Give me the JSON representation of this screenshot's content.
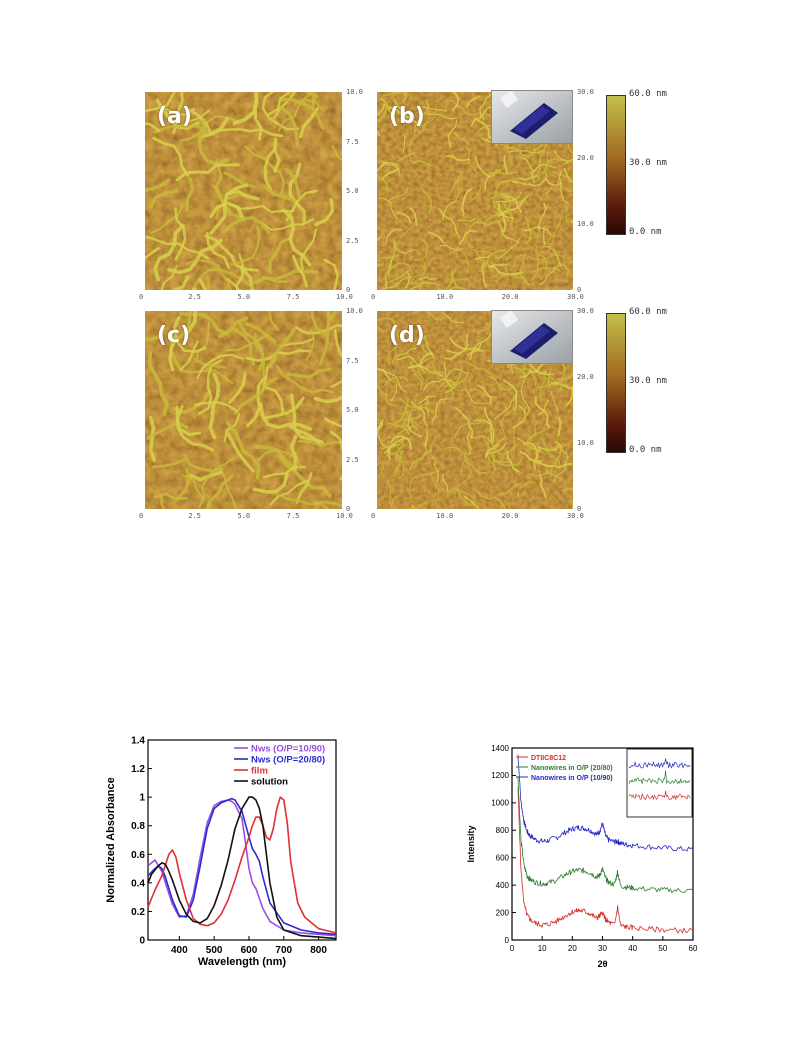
{
  "afm": {
    "panels": [
      {
        "label": "(a)",
        "x_ticks": [
          "0",
          "2.5",
          "5.0",
          "7.5",
          "10.0"
        ],
        "y_ticks": [
          "10.0",
          "7.5",
          "5.0",
          "2.5",
          "0"
        ],
        "seed": 3
      },
      {
        "label": "(b)",
        "x_ticks": [
          "0",
          "10.0",
          "20.0",
          "30.0"
        ],
        "y_ticks": [
          "30.0",
          "20.0",
          "10.0",
          "0"
        ],
        "seed": 11
      },
      {
        "label": "(c)",
        "x_ticks": [
          "0",
          "2.5",
          "5.0",
          "7.5",
          "10.0"
        ],
        "y_ticks": [
          "10.0",
          "7.5",
          "5.0",
          "2.5",
          "0"
        ],
        "seed": 7
      },
      {
        "label": "(d)",
        "x_ticks": [
          "0",
          "10.0",
          "20.0",
          "30.0"
        ],
        "y_ticks": [
          "30.0",
          "20.0",
          "10.0",
          "0"
        ],
        "seed": 19
      }
    ],
    "colorbars": [
      {
        "top": "60.0 nm",
        "mid": "30.0 nm",
        "bottom": "0.0 nm"
      },
      {
        "top": "60.0 nm",
        "mid": "30.0 nm",
        "bottom": "0.0 nm"
      }
    ]
  },
  "chart_data": [
    {
      "type": "line",
      "xlabel": "Wavelength (nm)",
      "ylabel": "Normalized Absorbance",
      "xlim": [
        310,
        850
      ],
      "ylim": [
        0,
        1.4
      ],
      "x_ticks": [
        400,
        500,
        600,
        700,
        800
      ],
      "y_ticks": [
        0,
        0.2,
        0.4,
        0.6,
        0.8,
        1,
        1.2,
        1.4
      ],
      "legend_position": "top-right",
      "series": [
        {
          "name": "Nws (O/P=10/90)",
          "color": "#9b4fe0",
          "x": [
            310,
            330,
            340,
            350,
            360,
            380,
            400,
            420,
            440,
            460,
            480,
            500,
            520,
            540,
            550,
            560,
            580,
            590,
            600,
            610,
            620,
            640,
            660,
            700,
            750,
            800,
            850
          ],
          "y": [
            0.52,
            0.56,
            0.52,
            0.48,
            0.4,
            0.25,
            0.16,
            0.17,
            0.32,
            0.58,
            0.82,
            0.94,
            0.97,
            0.98,
            0.97,
            0.95,
            0.85,
            0.68,
            0.5,
            0.4,
            0.36,
            0.22,
            0.13,
            0.07,
            0.05,
            0.04,
            0.03
          ]
        },
        {
          "name": "Nws (O/P=20/80)",
          "color": "#2b2bd4",
          "x": [
            310,
            330,
            340,
            350,
            360,
            380,
            400,
            420,
            440,
            460,
            480,
            500,
            520,
            540,
            550,
            560,
            580,
            600,
            610,
            620,
            630,
            640,
            660,
            700,
            750,
            800,
            850
          ],
          "y": [
            0.45,
            0.5,
            0.52,
            0.5,
            0.44,
            0.28,
            0.17,
            0.16,
            0.28,
            0.52,
            0.78,
            0.92,
            0.96,
            0.98,
            0.99,
            0.98,
            0.9,
            0.72,
            0.64,
            0.6,
            0.55,
            0.44,
            0.26,
            0.12,
            0.07,
            0.05,
            0.04
          ]
        },
        {
          "name": "film",
          "color": "#e03030",
          "x": [
            310,
            330,
            350,
            370,
            380,
            390,
            400,
            420,
            440,
            460,
            480,
            500,
            520,
            540,
            560,
            580,
            600,
            610,
            620,
            630,
            640,
            650,
            660,
            670,
            680,
            690,
            700,
            710,
            720,
            740,
            760,
            800,
            850
          ],
          "y": [
            0.23,
            0.35,
            0.45,
            0.6,
            0.63,
            0.58,
            0.47,
            0.28,
            0.15,
            0.11,
            0.1,
            0.12,
            0.18,
            0.28,
            0.42,
            0.58,
            0.72,
            0.8,
            0.86,
            0.86,
            0.8,
            0.72,
            0.7,
            0.78,
            0.92,
            1.0,
            0.98,
            0.82,
            0.55,
            0.26,
            0.16,
            0.08,
            0.05
          ]
        },
        {
          "name": "solution",
          "color": "#111111",
          "x": [
            310,
            320,
            340,
            350,
            360,
            370,
            380,
            400,
            420,
            440,
            460,
            480,
            500,
            520,
            540,
            560,
            580,
            600,
            610,
            620,
            630,
            640,
            650,
            660,
            680,
            700,
            750,
            800,
            850
          ],
          "y": [
            0.4,
            0.46,
            0.52,
            0.54,
            0.53,
            0.48,
            0.42,
            0.28,
            0.18,
            0.13,
            0.12,
            0.15,
            0.24,
            0.38,
            0.56,
            0.78,
            0.92,
            1.0,
            1.0,
            0.98,
            0.92,
            0.8,
            0.6,
            0.4,
            0.16,
            0.07,
            0.03,
            0.02,
            0.01
          ]
        }
      ]
    },
    {
      "type": "line",
      "xlabel": "2θ",
      "ylabel": "Intensity",
      "xlim": [
        0,
        60
      ],
      "ylim": [
        0,
        1400
      ],
      "x_ticks": [
        0,
        10,
        20,
        30,
        40,
        50,
        60
      ],
      "y_ticks": [
        0,
        200,
        400,
        600,
        800,
        1000,
        1200,
        1400
      ],
      "legend_position": "top-left",
      "inset": true,
      "series": [
        {
          "name": "DTIIC8C12",
          "color": "#d0302a",
          "x": [
            2,
            3,
            4,
            5,
            6,
            8,
            10,
            12,
            15,
            18,
            20,
            22,
            24,
            26,
            28,
            29,
            30,
            31,
            32,
            34,
            35,
            36,
            38,
            40,
            45,
            50,
            55,
            60
          ],
          "y": [
            1100,
            500,
            260,
            180,
            150,
            120,
            110,
            115,
            140,
            180,
            205,
            215,
            210,
            190,
            160,
            175,
            200,
            150,
            130,
            110,
            240,
            105,
            95,
            90,
            80,
            75,
            70,
            68
          ]
        },
        {
          "name": "Nanowires in O/P (20/80)",
          "color": "#2e7d2e",
          "x": [
            2,
            3,
            4,
            5,
            6,
            8,
            10,
            12,
            15,
            18,
            20,
            22,
            24,
            26,
            28,
            29,
            30,
            31,
            32,
            34,
            35,
            36,
            38,
            40,
            45,
            50,
            55,
            60
          ],
          "y": [
            1180,
            720,
            540,
            470,
            440,
            420,
            410,
            415,
            440,
            480,
            500,
            510,
            505,
            490,
            460,
            470,
            520,
            450,
            420,
            405,
            500,
            395,
            385,
            380,
            370,
            365,
            362,
            360
          ]
        },
        {
          "name": "Nanowires in O/P (10/90)",
          "color": "#2828c8",
          "x": [
            2,
            3,
            4,
            5,
            6,
            8,
            10,
            12,
            15,
            18,
            20,
            22,
            24,
            26,
            28,
            29,
            30,
            31,
            32,
            34,
            35,
            36,
            38,
            40,
            45,
            50,
            55,
            60
          ],
          "y": [
            1350,
            1000,
            860,
            790,
            760,
            730,
            720,
            725,
            750,
            790,
            810,
            820,
            815,
            800,
            770,
            790,
            850,
            760,
            730,
            715,
            720,
            705,
            695,
            690,
            680,
            672,
            665,
            660
          ]
        }
      ]
    }
  ]
}
